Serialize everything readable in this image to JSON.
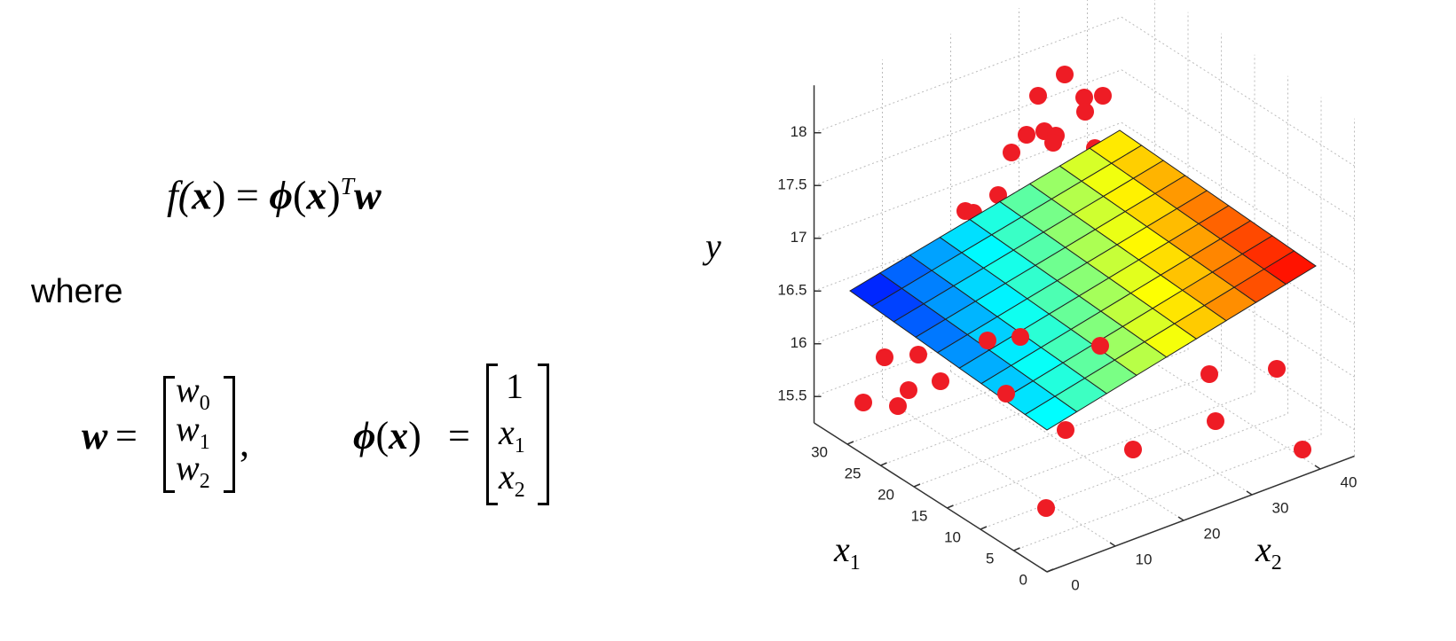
{
  "equation": {
    "parts": [
      "f(",
      "x",
      ") = ",
      "ϕ",
      "(",
      "x",
      ")",
      "T",
      "w"
    ]
  },
  "where": "where",
  "w_def": {
    "lhs": "w",
    "eq": "=",
    "entries": [
      {
        "base": "w",
        "sub": "0"
      },
      {
        "base": "w",
        "sub": "1"
      },
      {
        "base": "w",
        "sub": "2"
      }
    ],
    "comma": ","
  },
  "phi_def": {
    "lhs_sym": "ϕ",
    "lhs_open": "(",
    "lhs_arg": "x",
    "lhs_close": ")",
    "eq": "=",
    "entries": [
      {
        "base": "1",
        "sub": null
      },
      {
        "base": "x",
        "sub": "1"
      },
      {
        "base": "x",
        "sub": "2"
      }
    ]
  },
  "figure": {
    "y_label": "y",
    "x1_label": {
      "base": "x",
      "sub": "1"
    },
    "x2_label": {
      "base": "x",
      "sub": "2"
    },
    "x1lim": [
      0,
      35
    ],
    "x2lim": [
      0,
      45
    ],
    "ylim": [
      15.25,
      18.45
    ],
    "x1ticks": [
      0,
      5,
      10,
      15,
      20,
      25,
      30
    ],
    "x2ticks": [
      0,
      10,
      20,
      30,
      40
    ],
    "yticks": [
      15.5,
      16,
      16.5,
      17,
      17.5,
      18
    ]
  }
}
